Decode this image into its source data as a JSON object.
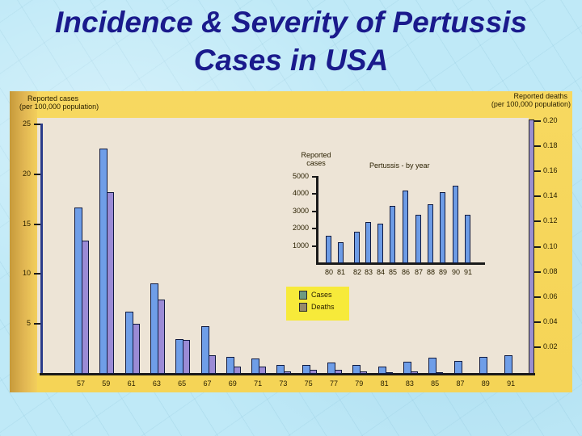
{
  "slide": {
    "title_line1": "Incidence & Severity of Pertussis",
    "title_line2": "Cases in USA"
  },
  "colors": {
    "title": "#1a1a8c",
    "background": "#bfe9f7",
    "frame": "#f5d456",
    "paper": "#ede4d6",
    "cases_bar": "#6f9ee8",
    "deaths_bar": "#9b8bd6",
    "legend_bg": "#f7ea3a"
  },
  "main_chart": {
    "left_axis_title_line1": "Reported cases",
    "left_axis_title_line2": "(per 100,000 population)",
    "right_axis_title_line1": "Reported deaths",
    "right_axis_title_line2": "(per 100,000 population)",
    "left_ticks": [
      "25",
      "20",
      "15",
      "10",
      "5"
    ],
    "right_ticks": [
      "0.20",
      "0.18",
      "0.16",
      "0.14",
      "0.12",
      "0.10",
      "0.08",
      "0.06",
      "0.04",
      "0.02"
    ],
    "legend": {
      "cases": "Cases",
      "deaths": "Deaths"
    }
  },
  "inset_chart": {
    "ylabel_line1": "Reported",
    "ylabel_line2": "cases",
    "title": "Pertussis - by year",
    "y_ticks": [
      "5000",
      "4000",
      "3000",
      "2000",
      "1000"
    ]
  },
  "chart_data": [
    {
      "type": "bar",
      "title": "Incidence & Severity of Pertussis Cases in USA",
      "xlabel": "",
      "ylabel": "Reported cases (per 100,000 population)",
      "y2label": "Reported deaths (per 100,000 population)",
      "categories": [
        "57",
        "59",
        "61",
        "63",
        "65",
        "67",
        "69",
        "71",
        "73",
        "75",
        "77",
        "79",
        "81",
        "83",
        "85",
        "87",
        "89",
        "91"
      ],
      "series": [
        {
          "name": "Cases",
          "axis": "left",
          "values": [
            16.7,
            22.6,
            6.2,
            9.1,
            3.5,
            4.8,
            1.7,
            1.5,
            0.9,
            0.9,
            1.1,
            0.9,
            0.7,
            1.2,
            1.6,
            1.3,
            1.7,
            1.9
          ]
        },
        {
          "name": "Deaths",
          "axis": "right",
          "values": [
            0.106,
            0.145,
            0.04,
            0.059,
            0.027,
            0.015,
            0.006,
            0.006,
            0.002,
            0.003,
            0.003,
            0.002,
            0.001,
            0.002,
            0.001,
            0.0005,
            0.0,
            0.0
          ]
        }
      ],
      "ylim": [
        0,
        25
      ],
      "y2lim": [
        0,
        0.2
      ],
      "legend_position": "center"
    },
    {
      "type": "bar",
      "title": "Pertussis - by year",
      "xlabel": "",
      "ylabel": "Reported cases",
      "categories": [
        "80",
        "81",
        "82",
        "83",
        "84",
        "85",
        "86",
        "87",
        "88",
        "89",
        "90",
        "91"
      ],
      "values": [
        1600,
        1200,
        1800,
        2400,
        2300,
        3300,
        4200,
        2800,
        3400,
        4100,
        4500,
        2800
      ],
      "ylim": [
        0,
        5000
      ]
    }
  ]
}
